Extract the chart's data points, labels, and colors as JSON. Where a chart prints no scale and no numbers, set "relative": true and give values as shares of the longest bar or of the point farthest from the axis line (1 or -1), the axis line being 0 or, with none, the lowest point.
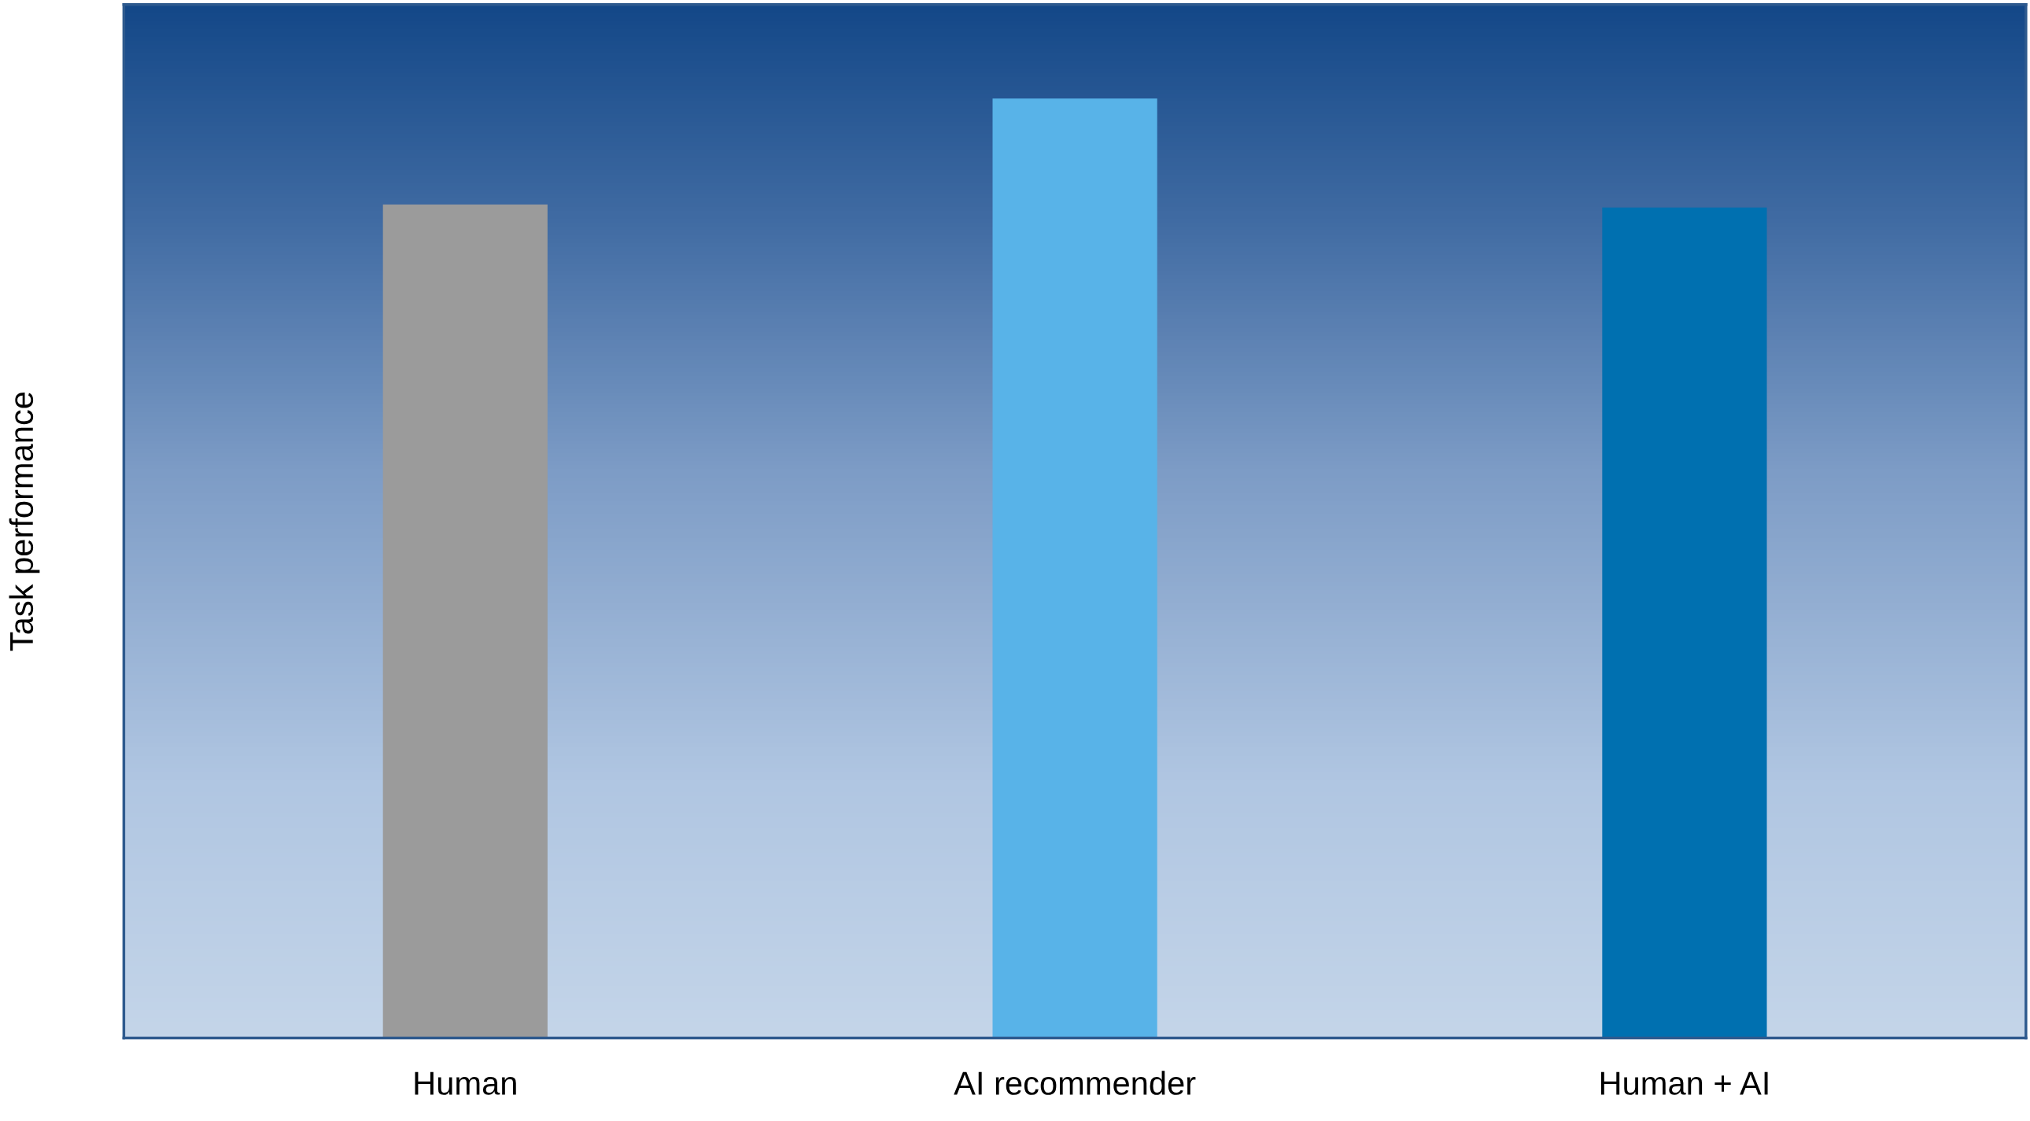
{
  "chart_data": {
    "type": "bar",
    "ylabel": "Task performance",
    "relative": true,
    "categories": [
      "Human",
      "AI recommender",
      "Human + AI"
    ],
    "values": [
      0.887,
      1,
      0.884
    ],
    "colors": [
      "#9b9b9b",
      "#58b3e8",
      "#0070b0"
    ],
    "grid": false,
    "legend": false
  }
}
